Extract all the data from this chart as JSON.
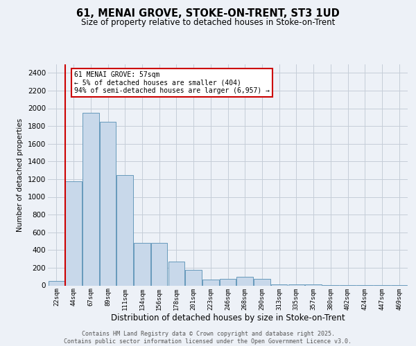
{
  "title_line1": "61, MENAI GROVE, STOKE-ON-TRENT, ST3 1UD",
  "title_line2": "Size of property relative to detached houses in Stoke-on-Trent",
  "xlabel": "Distribution of detached houses by size in Stoke-on-Trent",
  "ylabel": "Number of detached properties",
  "categories": [
    "22sqm",
    "44sqm",
    "67sqm",
    "89sqm",
    "111sqm",
    "134sqm",
    "156sqm",
    "178sqm",
    "201sqm",
    "223sqm",
    "246sqm",
    "268sqm",
    "290sqm",
    "313sqm",
    "335sqm",
    "357sqm",
    "380sqm",
    "402sqm",
    "424sqm",
    "447sqm",
    "469sqm"
  ],
  "values": [
    50,
    1175,
    1950,
    1850,
    1250,
    480,
    480,
    270,
    175,
    70,
    75,
    100,
    75,
    15,
    12,
    8,
    5,
    5,
    2,
    5,
    2
  ],
  "bar_color": "#c8d8ea",
  "bar_edge_color": "#6699bb",
  "grid_color": "#c5cdd8",
  "background_color": "#edf1f7",
  "red_line_index": 1,
  "annotation_text": "61 MENAI GROVE: 57sqm\n← 5% of detached houses are smaller (404)\n94% of semi-detached houses are larger (6,957) →",
  "annotation_box_facecolor": "#ffffff",
  "annotation_border_color": "#cc0000",
  "footer_line1": "Contains HM Land Registry data © Crown copyright and database right 2025.",
  "footer_line2": "Contains public sector information licensed under the Open Government Licence v3.0.",
  "ylim": [
    0,
    2500
  ],
  "yticks": [
    0,
    200,
    400,
    600,
    800,
    1000,
    1200,
    1400,
    1600,
    1800,
    2000,
    2200,
    2400
  ],
  "title_fontsize": 10.5,
  "subtitle_fontsize": 8.5,
  "xlabel_fontsize": 8.5,
  "ylabel_fontsize": 7.5,
  "xtick_fontsize": 6.5,
  "ytick_fontsize": 7.5,
  "annotation_fontsize": 7.0,
  "footer_fontsize": 6.0
}
